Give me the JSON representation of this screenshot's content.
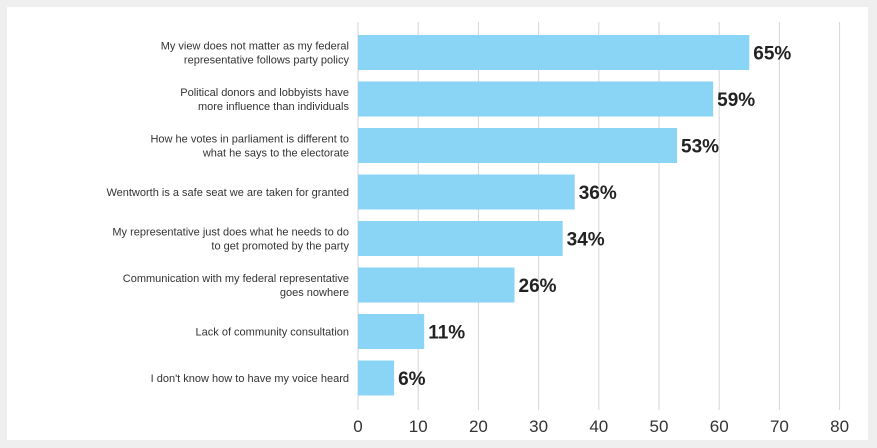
{
  "colors": {
    "bar": "#8ad4f5",
    "grid": "#d6d6d6",
    "page_background": "#efefef",
    "panel_background": "#ffffff"
  },
  "chart_data": {
    "type": "bar",
    "orientation": "horizontal",
    "categories": [
      [
        "My view does not matter as my federal",
        "representative follows party policy"
      ],
      [
        "Political donors and lobbyists have",
        "more influence than individuals"
      ],
      [
        "How he votes in parliament is different to",
        "what he says to the electorate"
      ],
      [
        "Wentworth is a safe seat we are taken for granted"
      ],
      [
        "My representative just does what he needs to do",
        "to get promoted by the party"
      ],
      [
        "Communication with my federal representative",
        "goes nowhere"
      ],
      [
        "Lack of community consultation"
      ],
      [
        "I don't know how to have my voice heard"
      ]
    ],
    "values": [
      65,
      59,
      53,
      36,
      34,
      26,
      11,
      6
    ],
    "value_labels": [
      "65%",
      "59%",
      "53%",
      "36%",
      "34%",
      "26%",
      "11%",
      "6%"
    ],
    "xlim": [
      0,
      80
    ],
    "xticks": [
      0,
      10,
      20,
      30,
      40,
      50,
      60,
      70,
      80
    ],
    "xtick_labels": [
      "0",
      "10",
      "20",
      "30",
      "40",
      "50",
      "60",
      "70",
      "80"
    ],
    "grid": true,
    "legend": "none"
  }
}
